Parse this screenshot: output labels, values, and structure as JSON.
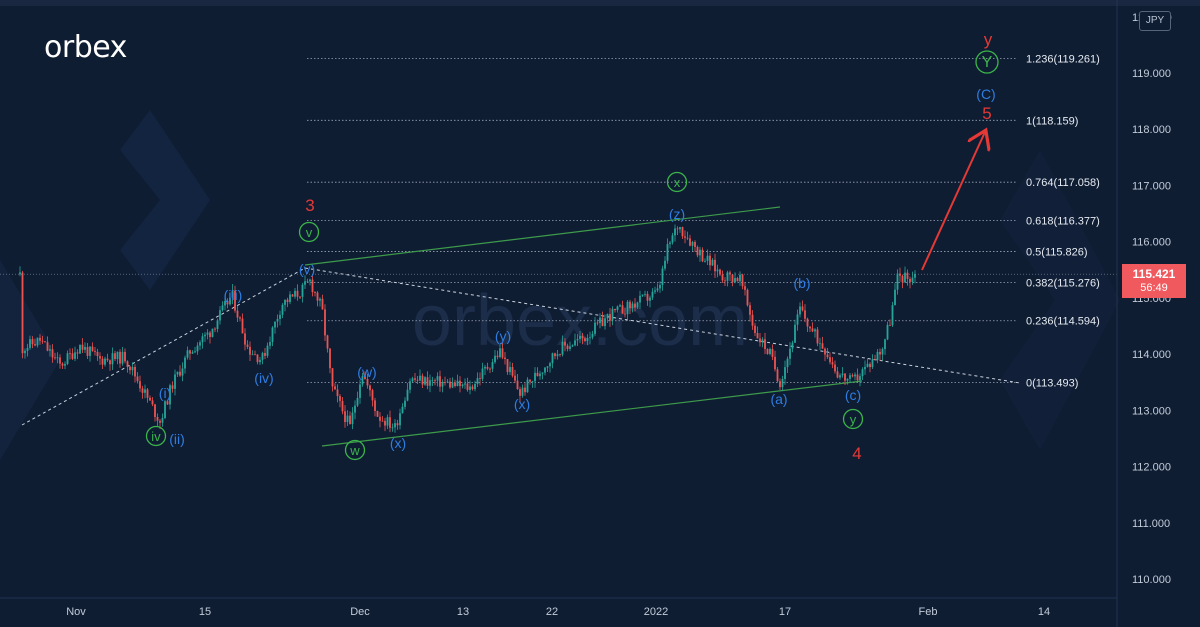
{
  "brand": {
    "name": "orbex",
    "watermark": "orbex.com"
  },
  "currency_badge": "JPY",
  "last_price": {
    "value": "115.421",
    "countdown": "56:49"
  },
  "colors": {
    "background": "#0f1d33",
    "candle_up": "#26a69a",
    "candle_down": "#ef5350",
    "label_blue": "#2f7de1",
    "label_green": "#3bb54a",
    "label_red": "#e53935",
    "fib_line": "#9aa5b5",
    "channel": "#3d9b4a",
    "arrow": "#e53935"
  },
  "chart_data": {
    "type": "candlestick",
    "title": "",
    "xlabel": "",
    "ylabel": "",
    "ylim": [
      109.6,
      120.2
    ],
    "y_ticks": [
      "110.000",
      "111.000",
      "112.000",
      "113.000",
      "114.000",
      "115.000",
      "116.000",
      "117.000",
      "118.000",
      "119.000"
    ],
    "x_ticks": [
      "Nov",
      "15",
      "Dec",
      "13",
      "22",
      "2022",
      "17",
      "Feb",
      "14"
    ],
    "top_tick_partial": "120.000",
    "fib_levels": [
      {
        "label": "1.236(119.261)",
        "value": 119.261
      },
      {
        "label": "1(118.159)",
        "value": 118.159
      },
      {
        "label": "0.764(117.058)",
        "value": 117.058
      },
      {
        "label": "0.618(116.377)",
        "value": 116.377
      },
      {
        "label": "0.5(115.826)",
        "value": 115.826
      },
      {
        "label": "0.382(115.276)",
        "value": 115.276
      },
      {
        "label": "0.236(114.594)",
        "value": 114.594
      },
      {
        "label": "0(113.493)",
        "value": 113.493
      }
    ],
    "wave_labels": [
      {
        "text": "3",
        "style": "red"
      },
      {
        "text": "4",
        "style": "red"
      },
      {
        "text": "5",
        "style": "red"
      },
      {
        "text": "y",
        "style": "red"
      },
      {
        "text": "(C)",
        "style": "blue"
      },
      {
        "text": "(i)",
        "style": "blue"
      },
      {
        "text": "(ii)",
        "style": "blue"
      },
      {
        "text": "(iii)",
        "style": "blue"
      },
      {
        "text": "(iv)",
        "style": "blue"
      },
      {
        "text": "(v)",
        "style": "blue"
      },
      {
        "text": "(w)",
        "style": "blue"
      },
      {
        "text": "(x)",
        "style": "blue"
      },
      {
        "text": "(y)",
        "style": "blue"
      },
      {
        "text": "(x)",
        "style": "blue"
      },
      {
        "text": "(z)",
        "style": "blue"
      },
      {
        "text": "(a)",
        "style": "blue"
      },
      {
        "text": "(b)",
        "style": "blue"
      },
      {
        "text": "(c)",
        "style": "blue"
      },
      {
        "text": "iv",
        "style": "green-circle"
      },
      {
        "text": "v",
        "style": "green-circle"
      },
      {
        "text": "w",
        "style": "green-circle"
      },
      {
        "text": "x",
        "style": "green-circle"
      },
      {
        "text": "y",
        "style": "green-circle"
      },
      {
        "text": "Y",
        "style": "green-circle"
      }
    ],
    "key_pivots": [
      {
        "label": "(i)",
        "date": "Nov 10",
        "price": 113.2
      },
      {
        "label": "ii",
        "date": "Nov 11",
        "price": 112.8
      },
      {
        "label": "(iii)",
        "date": "Nov 17",
        "price": 115.1
      },
      {
        "label": "(iv)",
        "date": "Nov 22",
        "price": 113.9
      },
      {
        "label": "v",
        "date": "Nov 24",
        "price": 115.5
      },
      {
        "label": "w",
        "date": "Dec 1",
        "price": 112.6
      },
      {
        "label": "(x)",
        "date": "Dec 20",
        "price": 113.2
      },
      {
        "label": "(z)",
        "date": "Jan 4",
        "price": 116.35
      },
      {
        "label": "(a)",
        "date": "Jan 17",
        "price": 113.5
      },
      {
        "label": "(b)",
        "date": "Jan 20",
        "price": 114.9
      },
      {
        "label": "(c)",
        "date": "Jan 24",
        "price": 113.5
      },
      {
        "label": "last",
        "date": "Jan 31",
        "price": 115.421
      },
      {
        "label": "target",
        "date": "Feb 4",
        "price": 118.159
      }
    ]
  }
}
